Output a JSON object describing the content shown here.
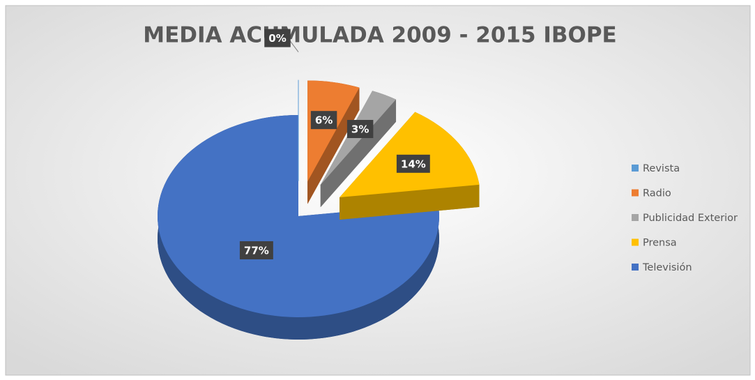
{
  "chart_data": {
    "type": "pie",
    "title": "MEDIA ACUMULADA 2009 - 2015 IBOPE",
    "categories": [
      "Revista",
      "Radio",
      "Publicidad Exterior",
      "Prensa",
      "Televisión"
    ],
    "values": [
      0,
      6,
      3,
      14,
      77
    ],
    "value_labels": [
      "0%",
      "6%",
      "3%",
      "14%",
      "77%"
    ],
    "colors": [
      "#5b9bd5",
      "#ed7d31",
      "#a5a5a5",
      "#ffc000",
      "#4472c4"
    ],
    "legend": "right"
  }
}
